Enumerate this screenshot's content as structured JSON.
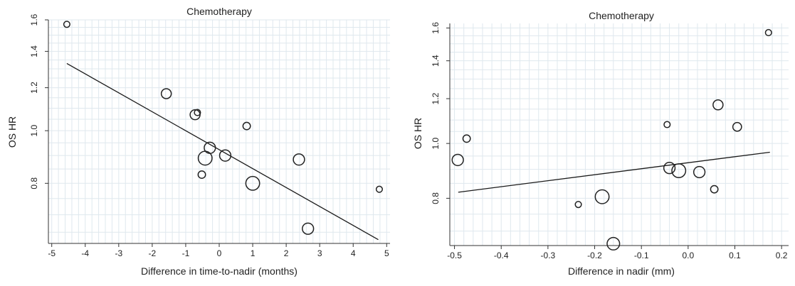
{
  "colors": {
    "grid": "#dfe8ee",
    "axis": "#333333",
    "marker": "#222222",
    "fit_line": "#1a1a1a",
    "background": "#ffffff"
  },
  "chart_data": [
    {
      "type": "scatter",
      "title": "Chemotherapy",
      "xlabel": "Difference in time-to-nadir (months)",
      "ylabel": "OS HR",
      "xlim": [
        -5.1,
        5.1
      ],
      "ylim": [
        0.62,
        1.6
      ],
      "y_scale": "log",
      "xticks": [
        -5,
        -4,
        -3,
        -2,
        -1,
        0,
        1,
        2,
        3,
        4,
        5
      ],
      "xtick_labels": [
        "-5",
        "-4",
        "-3",
        "-2",
        "-1",
        "0",
        "1",
        "2",
        "3",
        "4",
        "5"
      ],
      "yticks": [
        0.8,
        1.0,
        1.2,
        1.4,
        1.6
      ],
      "ytick_labels": [
        "0.8",
        "1.0",
        "1.2",
        "1.4",
        "1.6"
      ],
      "grid": true,
      "marker": "open-circle",
      "size_legend": "none",
      "points": [
        {
          "x": -4.55,
          "y": 1.57,
          "size": 2
        },
        {
          "x": -1.58,
          "y": 1.17,
          "size": 5
        },
        {
          "x": -0.72,
          "y": 1.07,
          "size": 5
        },
        {
          "x": -0.65,
          "y": 1.08,
          "size": 2
        },
        {
          "x": -0.52,
          "y": 0.83,
          "size": 3
        },
        {
          "x": -0.42,
          "y": 0.89,
          "size": 8
        },
        {
          "x": -0.28,
          "y": 0.93,
          "size": 6
        },
        {
          "x": 0.18,
          "y": 0.9,
          "size": 6
        },
        {
          "x": 0.82,
          "y": 1.02,
          "size": 3
        },
        {
          "x": 1.0,
          "y": 0.8,
          "size": 8
        },
        {
          "x": 2.38,
          "y": 0.885,
          "size": 6
        },
        {
          "x": 2.65,
          "y": 0.66,
          "size": 6
        },
        {
          "x": 4.78,
          "y": 0.78,
          "size": 2
        }
      ],
      "fit_line": {
        "x": [
          -4.55,
          4.75
        ],
        "y": [
          1.33,
          0.63
        ]
      }
    },
    {
      "type": "scatter",
      "title": "Chemotherapy",
      "xlabel": "Difference in nadir (mm)",
      "ylabel": "OS HR",
      "xlim": [
        -0.51,
        0.215
      ],
      "ylim": [
        0.66,
        1.63
      ],
      "y_scale": "log",
      "xticks": [
        -0.5,
        -0.4,
        -0.3,
        -0.2,
        -0.1,
        0.0,
        0.1,
        0.2
      ],
      "xtick_labels": [
        "-0.5",
        "-0.4",
        "-0.3",
        "-0.2",
        "-0.1",
        "0.0",
        "0.1",
        "0.2"
      ],
      "yticks": [
        0.8,
        1.0,
        1.2,
        1.4,
        1.6
      ],
      "ytick_labels": [
        "0.8",
        "1.0",
        "1.2",
        "1.4",
        "1.6"
      ],
      "grid": true,
      "marker": "open-circle",
      "size_legend": "none",
      "points": [
        {
          "x": -0.493,
          "y": 0.935,
          "size": 6
        },
        {
          "x": -0.474,
          "y": 1.02,
          "size": 3
        },
        {
          "x": -0.235,
          "y": 0.78,
          "size": 2
        },
        {
          "x": -0.184,
          "y": 0.805,
          "size": 8
        },
        {
          "x": -0.16,
          "y": 0.665,
          "size": 7
        },
        {
          "x": -0.045,
          "y": 1.08,
          "size": 2
        },
        {
          "x": -0.04,
          "y": 0.905,
          "size": 6
        },
        {
          "x": -0.02,
          "y": 0.895,
          "size": 8
        },
        {
          "x": 0.024,
          "y": 0.89,
          "size": 6
        },
        {
          "x": 0.056,
          "y": 0.83,
          "size": 3
        },
        {
          "x": 0.064,
          "y": 1.17,
          "size": 5
        },
        {
          "x": 0.105,
          "y": 1.07,
          "size": 4
        },
        {
          "x": 0.172,
          "y": 1.57,
          "size": 2
        }
      ],
      "fit_line": {
        "x": [
          -0.492,
          0.175
        ],
        "y": [
          0.82,
          0.965
        ]
      }
    }
  ]
}
